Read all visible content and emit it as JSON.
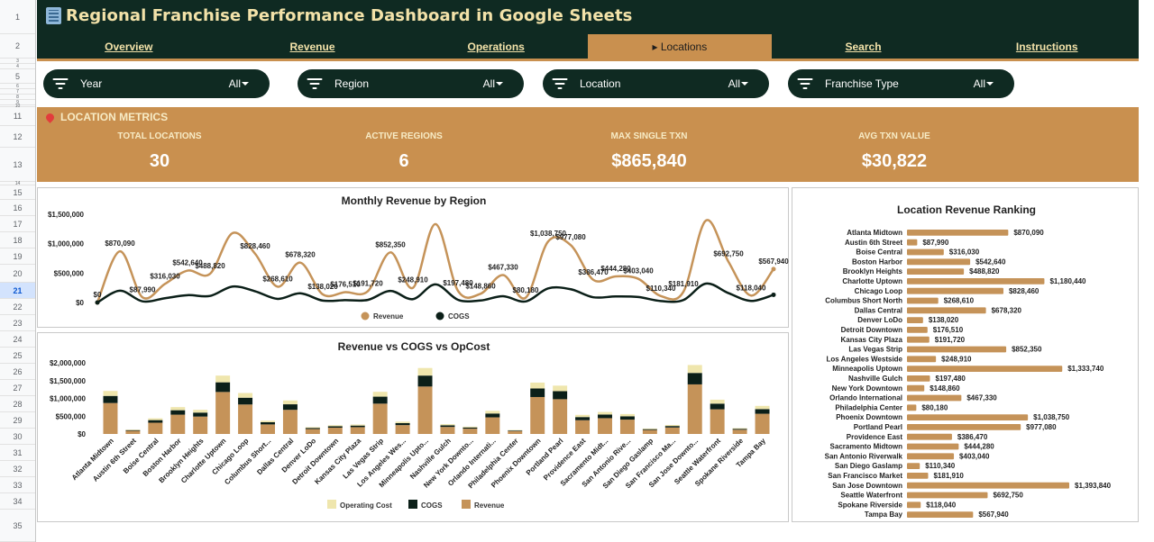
{
  "app": {
    "title": "Regional Franchise Performance Dashboard in Google Sheets"
  },
  "rows": [
    "1",
    "2",
    "3",
    "4",
    "5",
    "6",
    "7",
    "8",
    "9",
    "10",
    "11",
    "12",
    "13",
    "14",
    "15",
    "16",
    "17",
    "18",
    "19",
    "20",
    "21",
    "22",
    "23",
    "24",
    "25",
    "26",
    "27",
    "28",
    "29",
    "30",
    "31",
    "32",
    "33",
    "34",
    "35"
  ],
  "active_row": "21",
  "nav": {
    "tabs": [
      {
        "label": "Overview",
        "active": false
      },
      {
        "label": "Revenue",
        "active": false
      },
      {
        "label": "Operations",
        "active": false
      },
      {
        "label": "▸ Locations",
        "active": true
      },
      {
        "label": "Search",
        "active": false
      },
      {
        "label": "Instructions",
        "active": false
      }
    ]
  },
  "filters": [
    {
      "label": "Year",
      "value": "All"
    },
    {
      "label": "Region",
      "value": "All"
    },
    {
      "label": "Location",
      "value": "All"
    },
    {
      "label": "Franchise Type",
      "value": "All"
    }
  ],
  "metrics": {
    "header": "LOCATION METRICS",
    "items": [
      {
        "label": "TOTAL LOCATIONS",
        "value": "30"
      },
      {
        "label": "ACTIVE REGIONS",
        "value": "6"
      },
      {
        "label": "MAX SINGLE TXN",
        "value": "$865,840"
      },
      {
        "label": "AVG TXN VALUE",
        "value": "$30,822"
      }
    ]
  },
  "colors": {
    "dark_green": "#0f2a22",
    "accent_tan": "#c9904f",
    "title_gold": "#f3e2a9",
    "revenue": "#c59359",
    "cogs": "#0b1f18",
    "opcost": "#efe6ad"
  },
  "chart_data": [
    {
      "type": "line",
      "title": "Monthly Revenue by Region",
      "ylim": [
        0,
        1500000
      ],
      "yticks": [
        "$0",
        "$500,000",
        "$1,000,000",
        "$1,500,000"
      ],
      "series": [
        {
          "name": "Revenue",
          "values": [
            0,
            870090,
            87990,
            316030,
            542640,
            488820,
            1180440,
            828460,
            268610,
            678320,
            138020,
            176510,
            191720,
            852350,
            248910,
            1333740,
            197480,
            148860,
            467330,
            80180,
            1038750,
            977080,
            386470,
            444280,
            403040,
            110340,
            181910,
            1393840,
            692750,
            118040,
            567940
          ],
          "labels": [
            "$0",
            "$870,090",
            "$87,990",
            "$316,030",
            "$542,640",
            "$488,820",
            "",
            "$828,460",
            "$268,610",
            "$678,320",
            "$138,020",
            "$176,510",
            "$191,720",
            "$852,350",
            "$248,910",
            "",
            "$197,480",
            "$148,860",
            "$467,330",
            "$80,180",
            "$1,038,750",
            "$977,080",
            "$386,470",
            "$444,280",
            "$403,040",
            "$110,340",
            "$181,910",
            "",
            "$692,750",
            "$118,040",
            "$567,940"
          ]
        },
        {
          "name": "COGS",
          "values": [
            0,
            200000,
            20000,
            73000,
            125000,
            112000,
            272000,
            191000,
            62000,
            156000,
            32000,
            41000,
            44000,
            197000,
            57000,
            308000,
            46000,
            34000,
            108000,
            18000,
            240000,
            226000,
            89000,
            103000,
            93000,
            25000,
            42000,
            322000,
            160000,
            27000,
            131000
          ]
        }
      ],
      "legend": "bottom"
    },
    {
      "type": "bar",
      "title": "Revenue vs COGS vs OpCost",
      "stacked": true,
      "ylim": [
        0,
        2000000
      ],
      "yticks": [
        "$0",
        "$500,000",
        "$1,000,000",
        "$1,500,000",
        "$2,000,000"
      ],
      "categories": [
        "Atlanta Midtown",
        "Austin 6th Street",
        "Boise Central",
        "Boston Harbor",
        "Brooklyn Heights",
        "Charlotte Uptown",
        "Chicago Loop",
        "Columbus Short...",
        "Dallas Central",
        "Denver LoDo",
        "Detroit Downtown",
        "Kansas City Plaza",
        "Las Vegas Strip",
        "Los Angeles Wes...",
        "Minneapolis Upto...",
        "Nashville Gulch",
        "New York Downto...",
        "Orlando Internati...",
        "Philadelphia Center",
        "Phoenix Downtown",
        "Portland Pearl",
        "Providence East",
        "Sacramento Midt...",
        "San Antonio Rive...",
        "San Diego Gaslamp",
        "San Francisco Ma...",
        "San Jose Downto...",
        "Seattle Waterfront",
        "Spokane Riverside",
        "Tampa Bay"
      ],
      "series": [
        {
          "name": "Revenue",
          "values": [
            870090,
            87990,
            316030,
            542640,
            488820,
            1180440,
            828460,
            268610,
            678320,
            138020,
            176510,
            191720,
            852350,
            248910,
            1333740,
            197480,
            148860,
            467330,
            80180,
            1038750,
            977080,
            386470,
            444280,
            403040,
            110340,
            181910,
            1393840,
            692750,
            118040,
            567940
          ]
        },
        {
          "name": "COGS",
          "values": [
            200000,
            20000,
            73000,
            125000,
            112000,
            272000,
            191000,
            62000,
            156000,
            32000,
            41000,
            44000,
            197000,
            57000,
            308000,
            46000,
            34000,
            108000,
            18000,
            240000,
            226000,
            89000,
            103000,
            93000,
            25000,
            42000,
            322000,
            160000,
            27000,
            131000
          ]
        },
        {
          "name": "Operating Cost",
          "values": [
            140000,
            14000,
            50000,
            87000,
            78000,
            189000,
            132000,
            43000,
            108000,
            22000,
            28000,
            30000,
            136000,
            40000,
            213000,
            32000,
            24000,
            75000,
            13000,
            166000,
            156000,
            62000,
            71000,
            64000,
            18000,
            29000,
            223000,
            111000,
            19000,
            91000
          ]
        }
      ],
      "legend": "bottom",
      "legend_order": [
        "Operating Cost",
        "COGS",
        "Revenue"
      ]
    },
    {
      "type": "bar",
      "orientation": "horizontal",
      "title": "Location Revenue Ranking",
      "categories": [
        "Atlanta Midtown",
        "Austin 6th Street",
        "Boise Central",
        "Boston Harbor",
        "Brooklyn Heights",
        "Charlotte Uptown",
        "Chicago Loop",
        "Columbus Short North",
        "Dallas Central",
        "Denver LoDo",
        "Detroit Downtown",
        "Kansas City Plaza",
        "Las Vegas Strip",
        "Los Angeles Westside",
        "Minneapolis Uptown",
        "Nashville Gulch",
        "New York Downtown",
        "Orlando International",
        "Philadelphia Center",
        "Phoenix Downtown",
        "Portland Pearl",
        "Providence East",
        "Sacramento Midtown",
        "San Antonio Riverwalk",
        "San Diego Gaslamp",
        "San Francisco Market",
        "San Jose Downtown",
        "Seattle Waterfront",
        "Spokane Riverside",
        "Tampa Bay"
      ],
      "values": [
        870090,
        87990,
        316030,
        542640,
        488820,
        1180440,
        828460,
        268610,
        678320,
        138020,
        176510,
        191720,
        852350,
        248910,
        1333740,
        197480,
        148860,
        467330,
        80180,
        1038750,
        977080,
        386470,
        444280,
        403040,
        110340,
        181910,
        1393840,
        692750,
        118040,
        567940
      ],
      "labels": [
        "$870,090",
        "$87,990",
        "$316,030",
        "$542,640",
        "$488,820",
        "$1,180,440",
        "$828,460",
        "$268,610",
        "$678,320",
        "$138,020",
        "$176,510",
        "$191,720",
        "$852,350",
        "$248,910",
        "$1,333,740",
        "$197,480",
        "$148,860",
        "$467,330",
        "$80,180",
        "$1,038,750",
        "$977,080",
        "$386,470",
        "$444,280",
        "$403,040",
        "$110,340",
        "$181,910",
        "$1,393,840",
        "$692,750",
        "$118,040",
        "$567,940"
      ]
    }
  ]
}
